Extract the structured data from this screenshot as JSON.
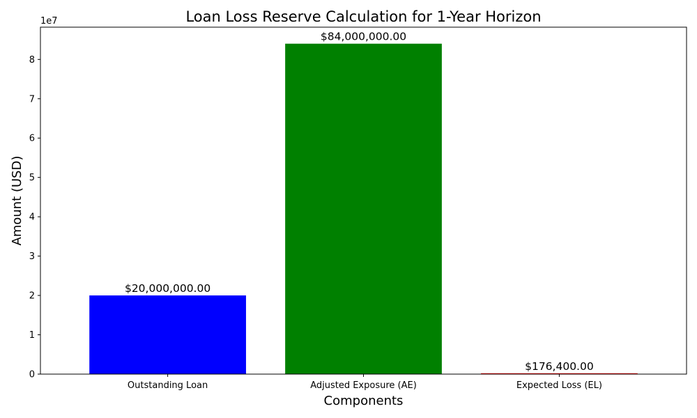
{
  "chart_data": {
    "type": "bar",
    "title": "Loan Loss Reserve Calculation for 1-Year Horizon",
    "xlabel": "Components",
    "ylabel": "Amount (USD)",
    "categories": [
      "Outstanding Loan",
      "Adjusted Exposure (AE)",
      "Expected Loss (EL)"
    ],
    "values": [
      20000000,
      84000000,
      176400
    ],
    "value_labels": [
      "$20,000,000.00",
      "$84,000,000.00",
      "$176,400.00"
    ],
    "colors": [
      "#0000ff",
      "#008000",
      "#ff0000"
    ],
    "ylim": [
      0,
      88200000
    ],
    "yticks": [
      0,
      10000000,
      20000000,
      30000000,
      40000000,
      50000000,
      60000000,
      70000000,
      80000000
    ],
    "ytick_labels": [
      "0",
      "1",
      "2",
      "3",
      "4",
      "5",
      "6",
      "7",
      "8"
    ],
    "y_offset_label": "1e7",
    "grid": false,
    "legend": "none"
  }
}
